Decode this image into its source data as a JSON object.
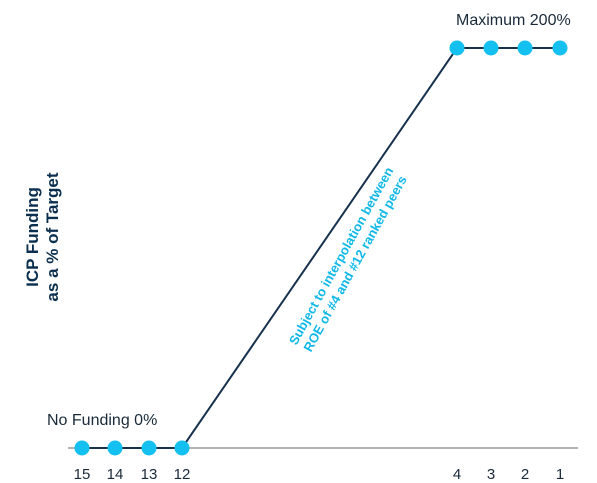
{
  "chart_data": {
    "type": "line",
    "ylabel_lines": [
      "ICP Funding",
      "as a % of Target"
    ],
    "x_ticks": [
      "15",
      "14",
      "13",
      "12",
      "4",
      "3",
      "2",
      "1"
    ],
    "points": [
      {
        "rank": 15,
        "value": 0
      },
      {
        "rank": 14,
        "value": 0
      },
      {
        "rank": 13,
        "value": 0
      },
      {
        "rank": 12,
        "value": 0
      },
      {
        "rank": 4,
        "value": 200
      },
      {
        "rank": 3,
        "value": 200
      },
      {
        "rank": 2,
        "value": 200
      },
      {
        "rank": 1,
        "value": 200
      }
    ],
    "ylim": [
      0,
      200
    ],
    "annotations": {
      "min": "No Funding 0%",
      "max": "Maximum 200%",
      "diagonal_lines": [
        "Subject to interpolation between",
        "ROE of #4 and #12 ranked peers"
      ]
    },
    "colors": {
      "line": "#17324d",
      "marker": "#14c0f0",
      "axis": "#9a9a9a",
      "diagonal_text": "#10b8e8",
      "ylabel": "#0b2f4e"
    }
  }
}
